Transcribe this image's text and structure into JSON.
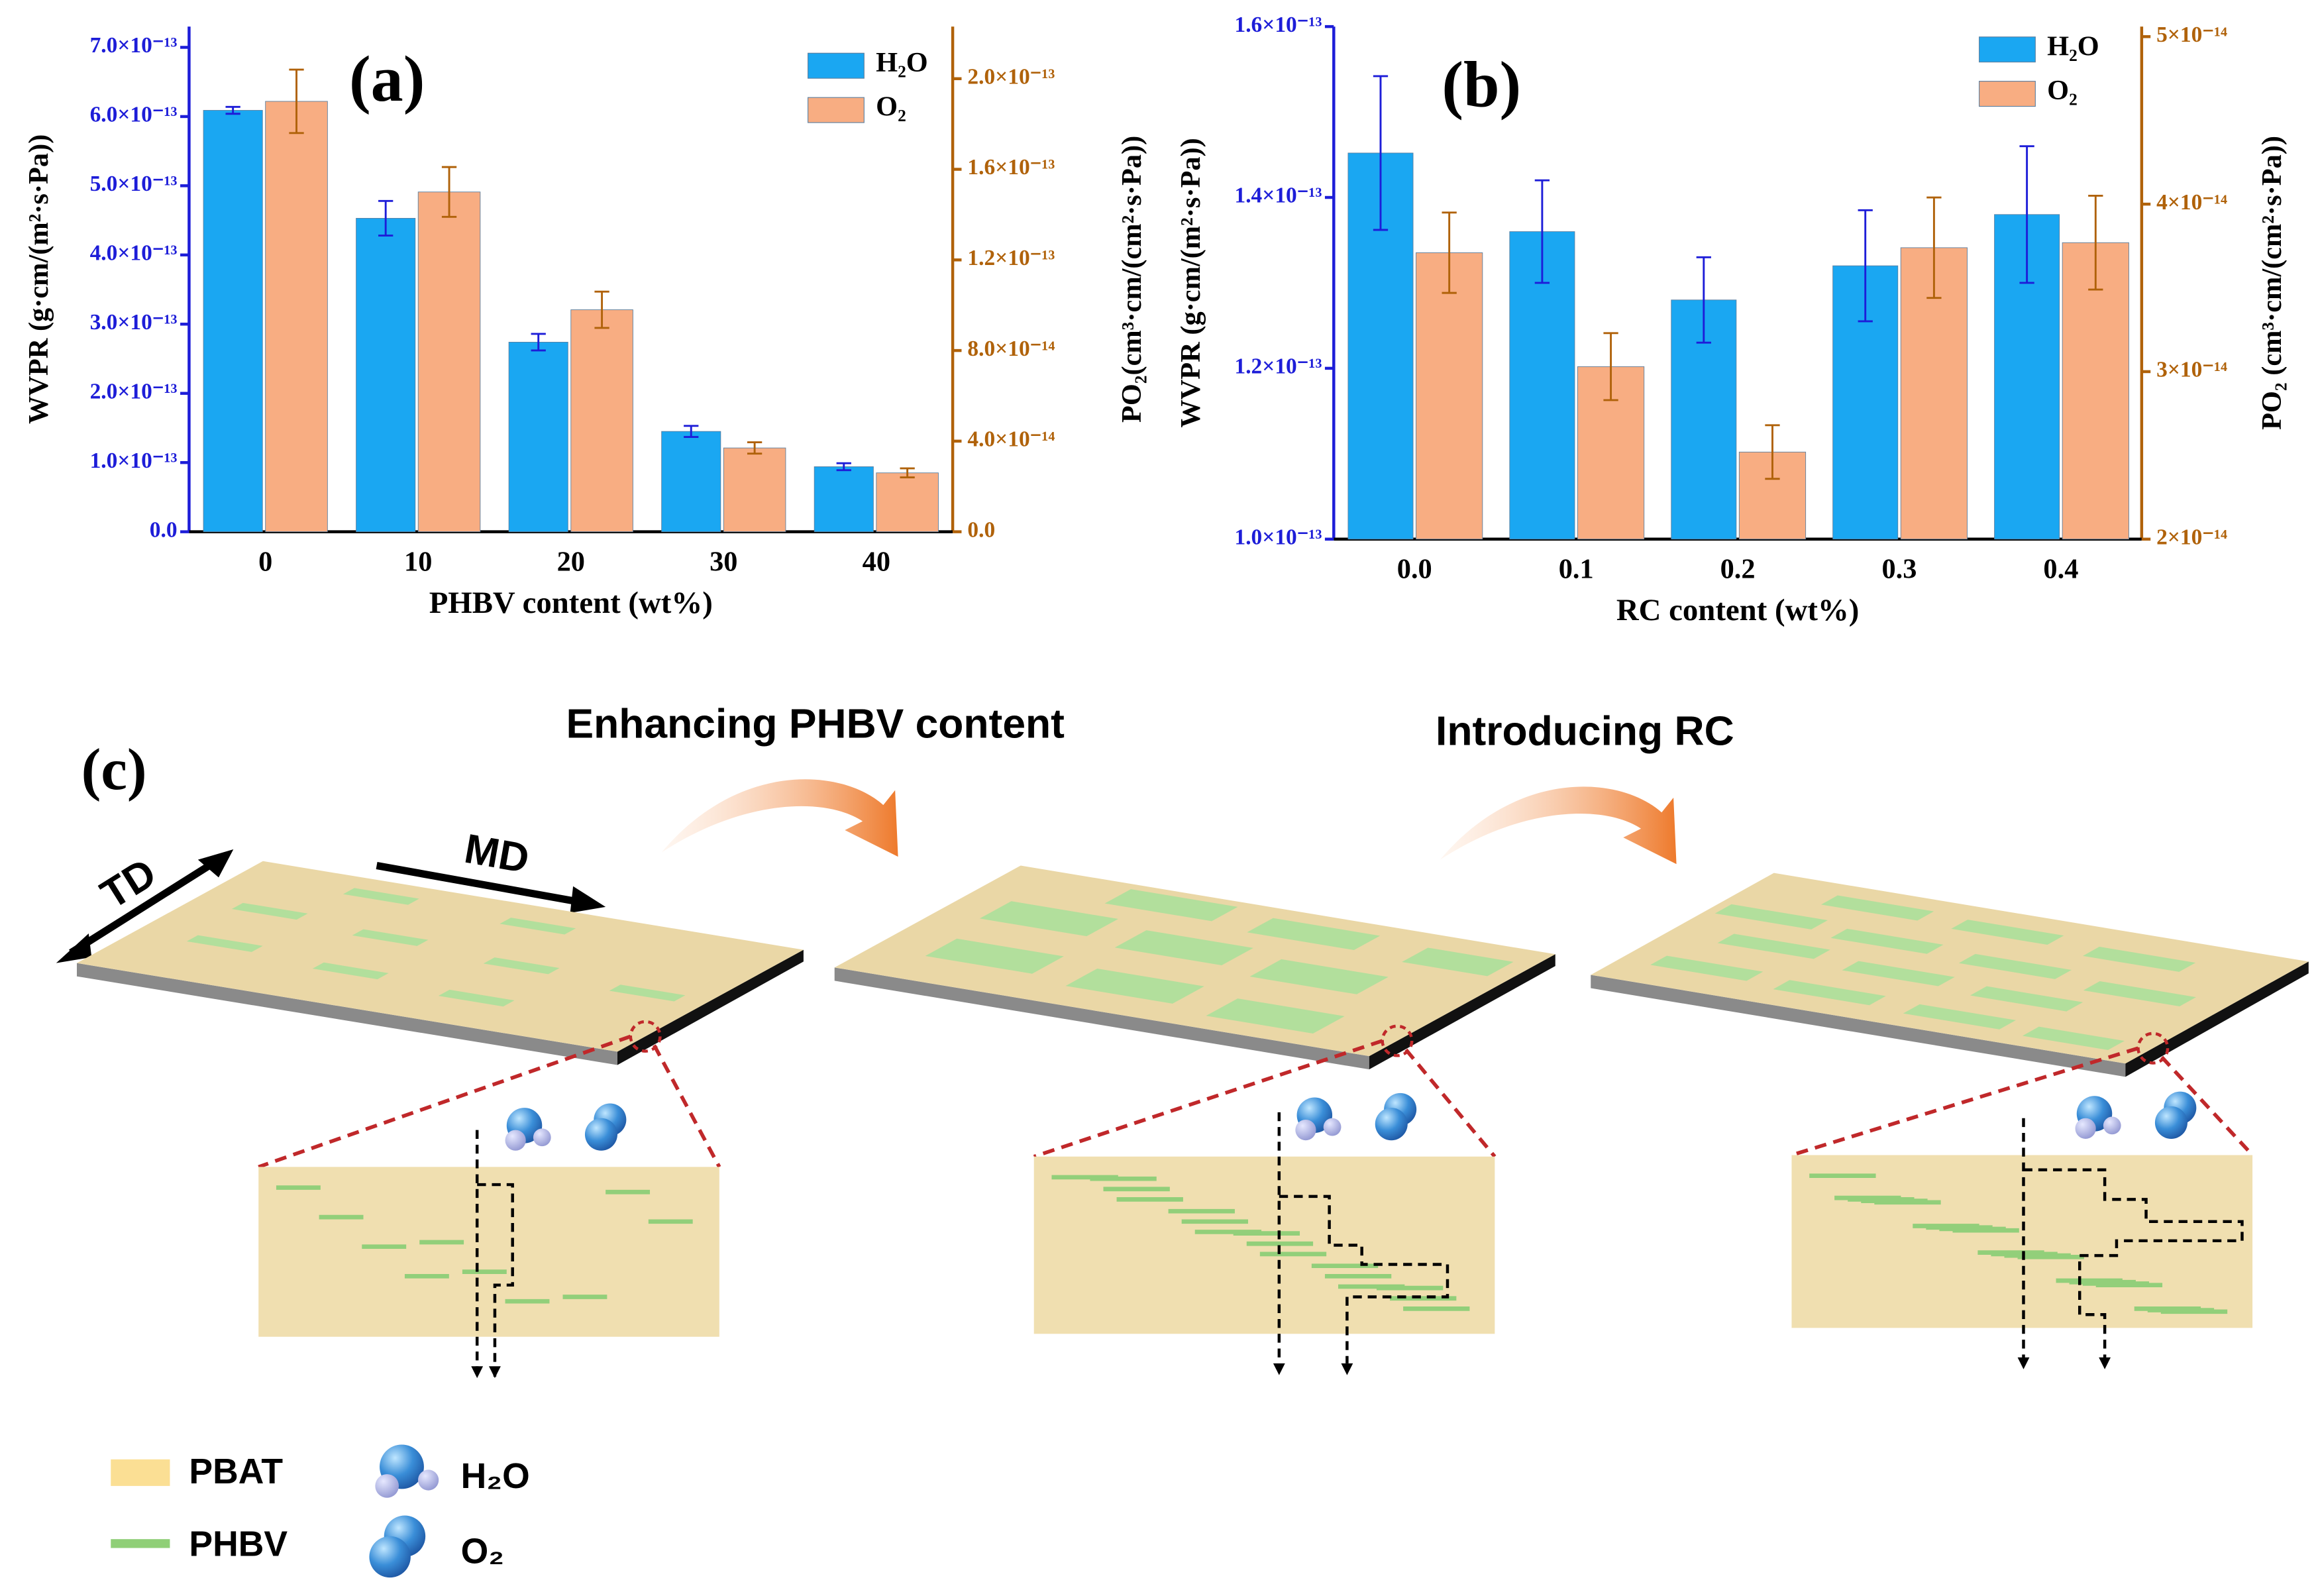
{
  "chart_data": [
    {
      "type": "bar",
      "panel": "(a)",
      "x_label": "PHBV content (wt%)",
      "y_label": "WVPR (g·cm/(m²·s·Pa))",
      "y2_label": "PO₂(cm³·cm/(cm²·s·Pa))",
      "categories": [
        "0",
        "10",
        "20",
        "30",
        "40"
      ],
      "series": [
        {
          "name": "H₂O",
          "color": "#1aa7f2",
          "values": [
            6.09e-13,
            4.53e-13,
            2.74e-13,
            1.45e-13,
            9.4e-14
          ],
          "errors": [
            5e-15,
            2.5e-14,
            1.2e-14,
            8e-15,
            5e-15
          ]
        },
        {
          "name": "O₂",
          "color": "#f8ad82",
          "axis": "y2",
          "values": [
            1.9e-13,
            1.5e-13,
            9.8e-14,
            3.7e-14,
            2.6e-14
          ],
          "errors": [
            1.4e-14,
            1.1e-14,
            8e-15,
            2.5e-15,
            2e-15
          ]
        }
      ],
      "ylim": [
        0,
        7.3e-13
      ],
      "yticks": [
        {
          "value": 0,
          "label": "0.0"
        },
        {
          "value": 1e-13,
          "label": "1.0×10⁻¹³"
        },
        {
          "value": 2e-13,
          "label": "2.0×10⁻¹³"
        },
        {
          "value": 3e-13,
          "label": "3.0×10⁻¹³"
        },
        {
          "value": 4e-13,
          "label": "4.0×10⁻¹³"
        },
        {
          "value": 5e-13,
          "label": "5.0×10⁻¹³"
        },
        {
          "value": 6e-13,
          "label": "6.0×10⁻¹³"
        },
        {
          "value": 7e-13,
          "label": "7.0×10⁻¹³"
        }
      ],
      "y2lim": [
        0,
        2.23e-13
      ],
      "y2ticks": [
        {
          "value": 0,
          "label": "0.0"
        },
        {
          "value": 4e-14,
          "label": "4.0×10⁻¹⁴"
        },
        {
          "value": 8e-14,
          "label": "8.0×10⁻¹⁴"
        },
        {
          "value": 1.2e-13,
          "label": "1.2×10⁻¹³"
        },
        {
          "value": 1.6e-13,
          "label": "1.6×10⁻¹³"
        },
        {
          "value": 2e-13,
          "label": "2.0×10⁻¹³"
        }
      ],
      "y_color": "#1d1dd8",
      "y2_color": "#b0620a"
    },
    {
      "type": "bar",
      "panel": "(b)",
      "x_label": "RC content (wt%)",
      "y_label": "WVPR (g·cm/(m²·s·Pa))",
      "y2_label": "PO₂ (cm³·cm/(cm²·s·Pa))",
      "categories": [
        "0.0",
        "0.1",
        "0.2",
        "0.3",
        "0.4"
      ],
      "series": [
        {
          "name": "H₂O",
          "color": "#1aa7f2",
          "values": [
            1.452e-13,
            1.36e-13,
            1.28e-13,
            1.32e-13,
            1.38e-13
          ],
          "errors": [
            9e-15,
            6e-15,
            5e-15,
            6.5e-15,
            8e-15
          ]
        },
        {
          "name": "O₂",
          "color": "#f8ad82",
          "axis": "y2",
          "values": [
            3.71e-14,
            3.03e-14,
            2.52e-14,
            3.74e-14,
            3.77e-14
          ],
          "errors": [
            2.4e-15,
            2e-15,
            1.6e-15,
            3e-15,
            2.8e-15
          ]
        }
      ],
      "ylim": [
        1e-13,
        1.6e-13
      ],
      "yticks": [
        {
          "value": 1e-13,
          "label": "1.0×10⁻¹³"
        },
        {
          "value": 1.2e-13,
          "label": "1.2×10⁻¹³"
        },
        {
          "value": 1.4e-13,
          "label": "1.4×10⁻¹³"
        },
        {
          "value": 1.6e-13,
          "label": "1.6×10⁻¹³"
        }
      ],
      "y2lim": [
        2e-14,
        5.06e-14
      ],
      "y2ticks": [
        {
          "value": 2e-14,
          "label": "2×10⁻¹⁴"
        },
        {
          "value": 3e-14,
          "label": "3×10⁻¹⁴"
        },
        {
          "value": 4e-14,
          "label": "4×10⁻¹⁴"
        },
        {
          "value": 5e-14,
          "label": "5×10⁻¹⁴"
        }
      ],
      "y_color": "#1d1dd8",
      "y2_color": "#b0620a"
    }
  ],
  "diagram": {
    "panel": "(c)",
    "step_1": "Enhancing PHBV content",
    "step_2": "Introducing RC",
    "td": "TD",
    "md": "MD",
    "legend": [
      "PBAT",
      "PHBV",
      "H₂O",
      "O₂"
    ]
  }
}
